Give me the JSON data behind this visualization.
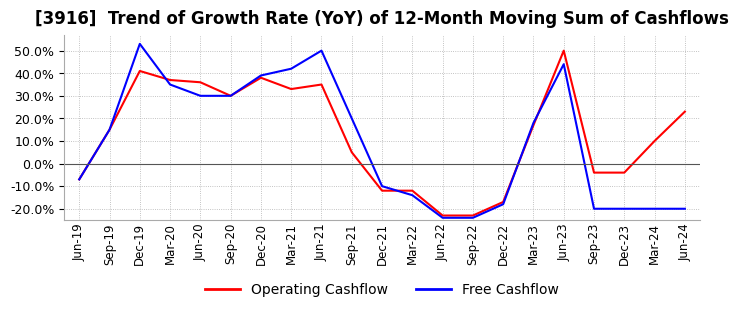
{
  "title": "[3916]  Trend of Growth Rate (YoY) of 12-Month Moving Sum of Cashflows",
  "title_fontsize": 12,
  "ylim": [
    -0.25,
    0.57
  ],
  "yticks": [
    -0.2,
    -0.1,
    0.0,
    0.1,
    0.2,
    0.3,
    0.4,
    0.5
  ],
  "background_color": "#ffffff",
  "grid_color": "#b0b0b0",
  "dates": [
    "Jun-19",
    "Sep-19",
    "Dec-19",
    "Mar-20",
    "Jun-20",
    "Sep-20",
    "Dec-20",
    "Mar-21",
    "Jun-21",
    "Sep-21",
    "Dec-21",
    "Mar-22",
    "Jun-22",
    "Sep-22",
    "Dec-22",
    "Mar-23",
    "Jun-23",
    "Sep-23",
    "Dec-23",
    "Mar-24",
    "Jun-24"
  ],
  "operating_cashflow": [
    -0.07,
    0.15,
    0.41,
    0.37,
    0.36,
    0.3,
    0.38,
    0.33,
    0.35,
    0.05,
    -0.12,
    -0.12,
    -0.23,
    -0.23,
    -0.17,
    0.17,
    0.5,
    -0.04,
    -0.04,
    0.1,
    0.23
  ],
  "free_cashflow": [
    -0.07,
    0.15,
    0.53,
    0.35,
    0.3,
    0.3,
    0.39,
    0.42,
    0.5,
    0.2,
    -0.1,
    -0.14,
    -0.24,
    -0.24,
    -0.18,
    0.18,
    0.44,
    -0.2,
    -0.2,
    -0.2,
    -0.2
  ],
  "operating_color": "#ff0000",
  "free_color": "#0000ff",
  "legend_labels": [
    "Operating Cashflow",
    "Free Cashflow"
  ]
}
